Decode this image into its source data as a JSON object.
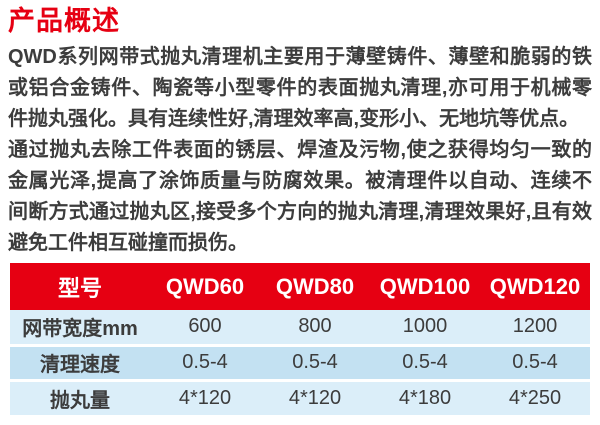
{
  "title": "产品概述",
  "paragraphs": [
    "QWD系列网带式抛丸清理机主要用于薄壁铸件、薄壁和脆弱的铁或铝合金铸件、陶瓷等小型零件的表面抛丸清理,亦可用于机械零件抛丸强化。具有连续性好,清理效率高,变形小、无地坑等优点。",
    "通过抛丸去除工件表面的锈层、焊渣及污物,使之获得均匀一致的金属光泽,提高了涂饰质量与防腐效果。被清理件以自动、连续不间断方式通过抛丸区,接受多个方向的抛丸清理,清理效果好,且有效避免工件相互碰撞而损伤。"
  ],
  "table": {
    "header": [
      "型号",
      "QWD60",
      "QWD80",
      "QWD100",
      "QWD120"
    ],
    "rows": [
      {
        "label": "网带宽度mm",
        "values": [
          "600",
          "800",
          "1000",
          "1200"
        ]
      },
      {
        "label": "清理速度",
        "values": [
          "0.5-4",
          "0.5-4",
          "0.5-4",
          "0.5-4"
        ]
      },
      {
        "label": "抛丸量",
        "values": [
          "4*120",
          "4*120",
          "4*180",
          "4*250"
        ]
      }
    ]
  },
  "colors": {
    "accent_red": "#e60012",
    "row_light": "#dbeef9",
    "row_mid": "#c3e1f2",
    "body_text": "#3d3d3d",
    "header_text": "#ffffff"
  }
}
